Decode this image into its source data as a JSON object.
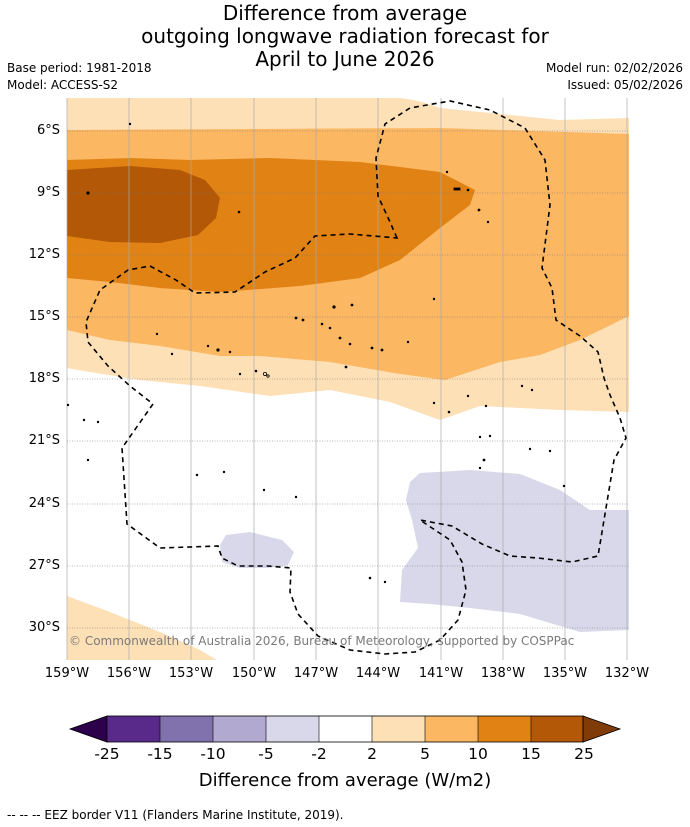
{
  "title": {
    "line1": "Difference from average",
    "line2": "outgoing longwave radiation forecast for",
    "line3": "April to June 2026"
  },
  "meta": {
    "base_period": "Base period: 1981-2018",
    "model": "Model: ACCESS-S2",
    "model_run": "Model run: 02/02/2026",
    "issued": "Issued: 05/02/2026"
  },
  "map": {
    "lat_labels": [
      "6°S",
      "9°S",
      "12°S",
      "15°S",
      "18°S",
      "21°S",
      "24°S",
      "27°S",
      "30°S"
    ],
    "lon_labels": [
      "159°W",
      "156°W",
      "153°W",
      "150°W",
      "147°W",
      "144°W",
      "141°W",
      "138°W",
      "135°W",
      "132°W"
    ],
    "copyright": "© Commonwealth of Australia 2026, Bureau of Meteorology, supported by COSPPac"
  },
  "colorbar": {
    "ticks": [
      "-25",
      "-15",
      "-10",
      "-5",
      "-2",
      "2",
      "5",
      "10",
      "15",
      "25"
    ],
    "colors": [
      "#592A8A",
      "#8171AD",
      "#B2A9D1",
      "#D8D8EA",
      "#FFFFFF",
      "#FDE0B6",
      "#FBB762",
      "#E08214",
      "#B35806"
    ],
    "under_color": "#2D004B",
    "over_color": "#7F3B08",
    "label": "Difference from average (W/m2)"
  },
  "footer": {
    "legend": "--  --  -- EEZ border V11 (Flanders Marine Institute, 2019)."
  }
}
